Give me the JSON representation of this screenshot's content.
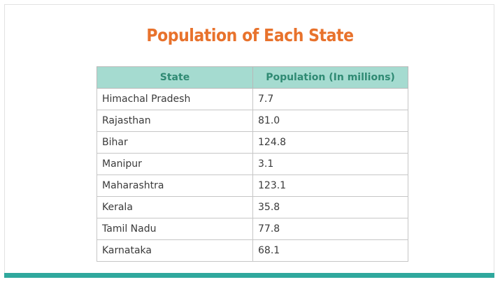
{
  "title": "Population of Each State",
  "table": {
    "headers": [
      "State",
      "Population (In millions)"
    ],
    "rows": [
      [
        "Himachal Pradesh",
        "7.7"
      ],
      [
        "Rajasthan",
        "81.0"
      ],
      [
        "Bihar",
        "124.8"
      ],
      [
        "Manipur",
        "3.1"
      ],
      [
        "Maharashtra",
        "123.1"
      ],
      [
        "Kerala",
        "35.8"
      ],
      [
        "Tamil Nadu",
        "77.8"
      ],
      [
        "Karnataka",
        "68.1"
      ]
    ]
  },
  "colors": {
    "title": "#e8722c",
    "header_bg": "#a5dbd0",
    "header_text": "#2f8a73",
    "bottom_bar": "#2fa89d"
  }
}
